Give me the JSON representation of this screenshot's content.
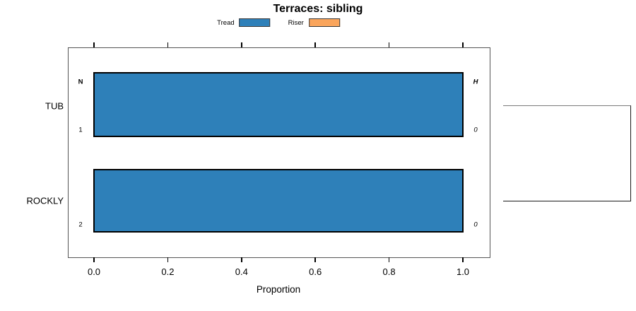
{
  "title": "Terraces: sibling",
  "legend": {
    "items": [
      {
        "label": "Tread",
        "color": "#2e80b9"
      },
      {
        "label": "Riser",
        "color": "#faa55c"
      }
    ]
  },
  "chart_data": {
    "type": "bar",
    "orientation": "horizontal",
    "title": "Terraces: sibling",
    "categories": [
      "TUB",
      "ROCKLY"
    ],
    "series": [
      {
        "name": "Tread",
        "color": "#2e80b9",
        "values": [
          1.0,
          1.0
        ]
      },
      {
        "name": "Riser",
        "color": "#faa55c",
        "values": [
          0.0,
          0.0
        ]
      }
    ],
    "xlabel": "Proportion",
    "xlim": [
      0.0,
      1.0
    ],
    "xticks": [
      0.0,
      0.2,
      0.4,
      0.6,
      0.8,
      1.0
    ],
    "xticklabels": [
      "0.0",
      "0.2",
      "0.4",
      "0.6",
      "0.8",
      "1.0"
    ],
    "grid": false,
    "legend_position": "top-center",
    "annotations": {
      "left_column_header": "N",
      "right_column_header": "H",
      "rows": [
        {
          "category": "TUB",
          "N": "1",
          "H": "0"
        },
        {
          "category": "ROCKLY",
          "N": "2",
          "H": "0"
        }
      ]
    },
    "sibling_bracket_connects": [
      "TUB",
      "ROCKLY"
    ]
  }
}
